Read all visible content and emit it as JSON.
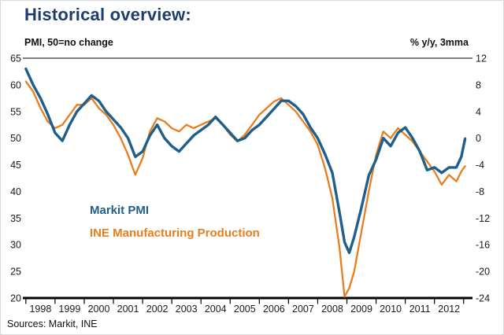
{
  "sources": "Sources: Markit, INE",
  "chart_data": {
    "type": "line",
    "title": "Historical overview:",
    "x_axis": {
      "min": 1997.95,
      "max": 2013.25,
      "tick_years": [
        1998,
        1999,
        2000,
        2001,
        2002,
        2003,
        2004,
        2005,
        2006,
        2007,
        2008,
        2009,
        2010,
        2011,
        2012
      ]
    },
    "left_axis": {
      "label": "PMI, 50=no change",
      "min": 20,
      "max": 65,
      "ticks": [
        65,
        60,
        55,
        50,
        45,
        40,
        35,
        30,
        25,
        20
      ]
    },
    "right_axis": {
      "label": "% y/y, 3mma",
      "min": -24,
      "max": 12,
      "ticks": [
        12,
        8,
        4,
        0,
        -4,
        -8,
        -12,
        -16,
        -20,
        -24
      ]
    },
    "x": [
      1998.0,
      1998.25,
      1998.5,
      1998.75,
      1999.0,
      1999.25,
      1999.5,
      1999.75,
      2000.0,
      2000.25,
      2000.5,
      2000.75,
      2001.0,
      2001.25,
      2001.5,
      2001.75,
      2002.0,
      2002.25,
      2002.5,
      2002.75,
      2003.0,
      2003.25,
      2003.5,
      2003.75,
      2004.0,
      2004.25,
      2004.5,
      2004.75,
      2005.0,
      2005.25,
      2005.5,
      2005.75,
      2006.0,
      2006.25,
      2006.5,
      2006.75,
      2007.0,
      2007.25,
      2007.5,
      2007.75,
      2008.0,
      2008.25,
      2008.5,
      2008.75,
      2008.92,
      2009.08,
      2009.25,
      2009.5,
      2009.75,
      2010.0,
      2010.25,
      2010.5,
      2010.75,
      2011.0,
      2011.25,
      2011.5,
      2011.75,
      2012.0,
      2012.25,
      2012.5,
      2012.75,
      2012.92,
      2013.05
    ],
    "series": [
      {
        "name": "Markit PMI",
        "axis": "left",
        "color": "#1f5f8b",
        "values": [
          63,
          60,
          57.5,
          54.5,
          51,
          49.5,
          52.5,
          55,
          56.5,
          58,
          57,
          55,
          53.5,
          52,
          50,
          46.5,
          47.5,
          50.5,
          52.5,
          50,
          48.5,
          47.5,
          49,
          50.5,
          51.5,
          52.5,
          54,
          52.5,
          51,
          49.5,
          50,
          51.5,
          52.5,
          54,
          55.5,
          57,
          57,
          56,
          54.5,
          52,
          50,
          47,
          43.5,
          36,
          30.5,
          28.5,
          31.5,
          37,
          43,
          46,
          50,
          48.5,
          51,
          52,
          50,
          47.5,
          44,
          44.5,
          43.5,
          44.5,
          44.5,
          46.5,
          49.9
        ]
      },
      {
        "name": "INE Manufacturing Production",
        "axis": "right",
        "color": "#e87d1e",
        "values": [
          8.5,
          7,
          4.5,
          2.5,
          1.5,
          2,
          3.5,
          5,
          5,
          6,
          4.5,
          3.5,
          2,
          0,
          -2.5,
          -5.5,
          -3,
          1,
          3,
          2.5,
          1.5,
          1,
          2,
          1.5,
          2,
          2.5,
          3,
          2,
          0.5,
          -0.5,
          0.5,
          2,
          3.5,
          4.5,
          5.5,
          6,
          5,
          4,
          2.5,
          1,
          -1,
          -4.5,
          -9,
          -16.5,
          -23.8,
          -22.5,
          -20,
          -14,
          -8,
          -2.5,
          1,
          0,
          1.5,
          0.5,
          -0.5,
          -2,
          -3.5,
          -5,
          -7,
          -5.5,
          -6.5,
          -5,
          -4.2
        ]
      }
    ]
  }
}
